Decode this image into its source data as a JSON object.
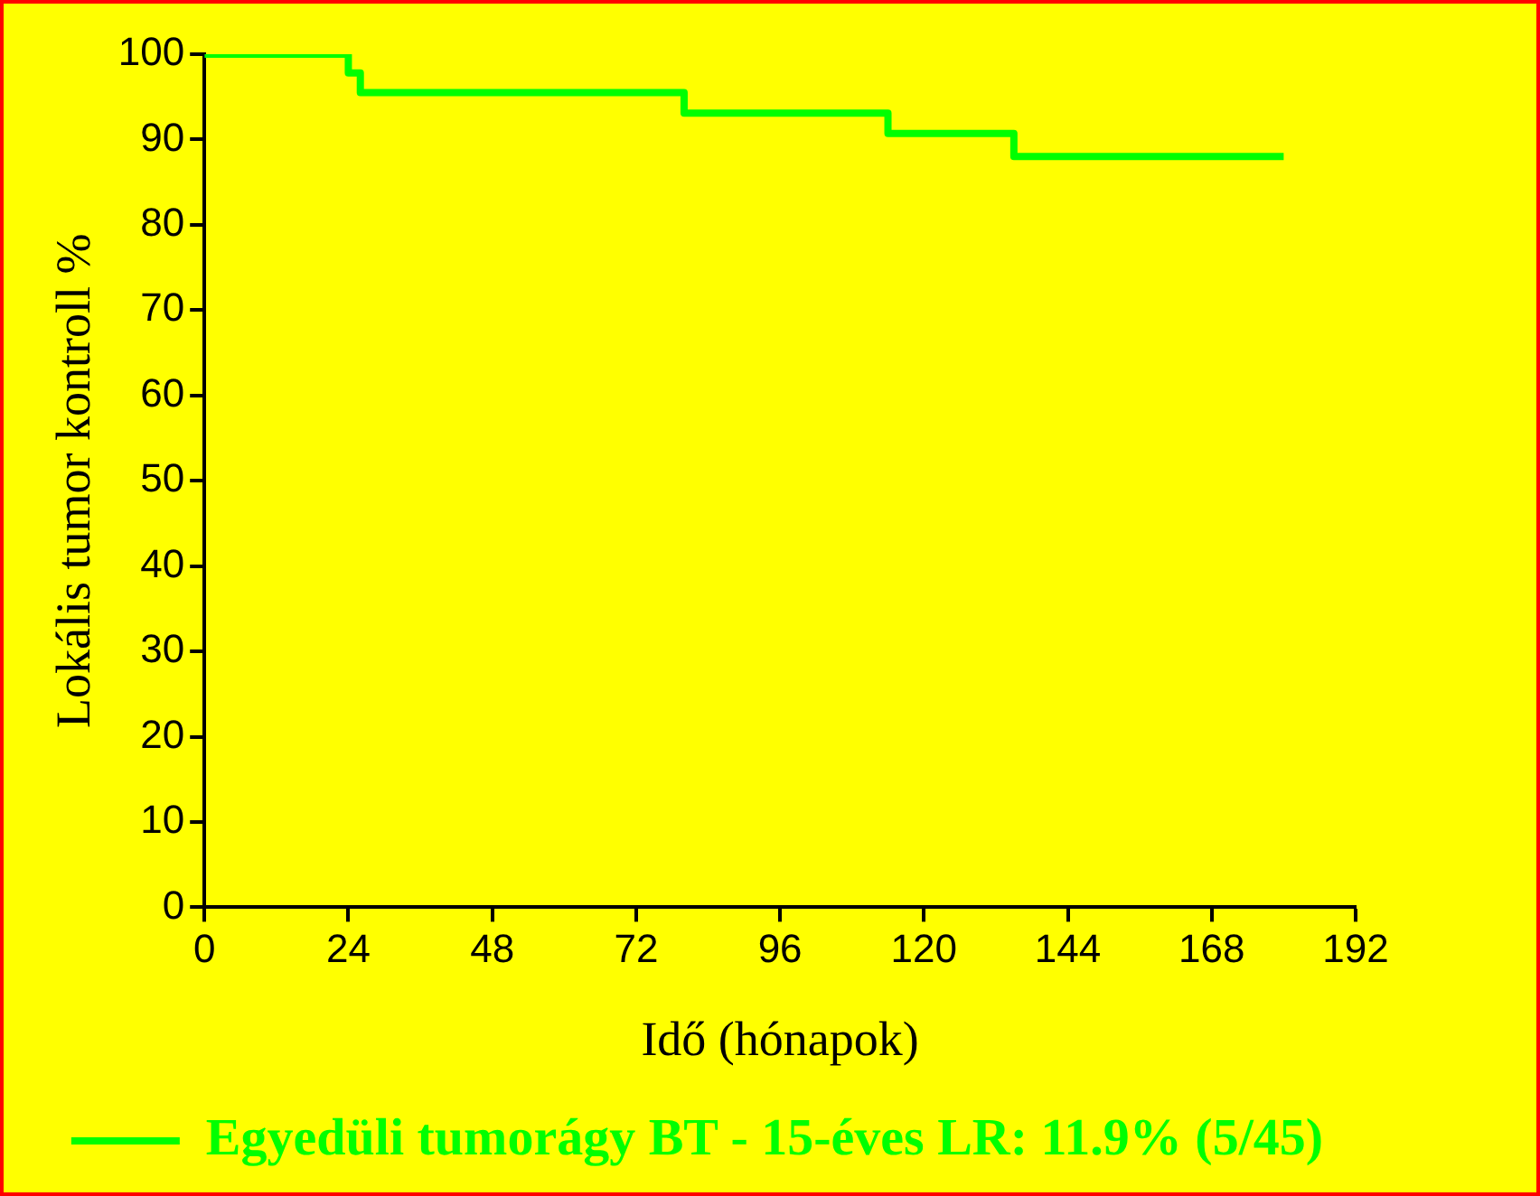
{
  "chart_data": {
    "type": "step",
    "xlabel": "Idő (hónapok)",
    "ylabel": "Lokális tumor kontroll %",
    "x": [
      0,
      24,
      26,
      80,
      114,
      135,
      180
    ],
    "series": [
      {
        "name": "Egyedüli tumorágy BT - 15-éves LR: 11.9% (5/45)",
        "color": "#00ff00",
        "values": [
          100,
          97.8,
          95.5,
          93.1,
          90.7,
          88.0,
          88.0
        ]
      }
    ],
    "xlim": [
      0,
      192
    ],
    "xticks": [
      0,
      24,
      48,
      72,
      96,
      120,
      144,
      168,
      192
    ],
    "ylim": [
      0,
      100
    ],
    "yticks": [
      0,
      10,
      20,
      30,
      40,
      50,
      60,
      70,
      80,
      90,
      100
    ],
    "grid": false,
    "legend": "bottom",
    "marker": "none",
    "line_style": "solid"
  }
}
